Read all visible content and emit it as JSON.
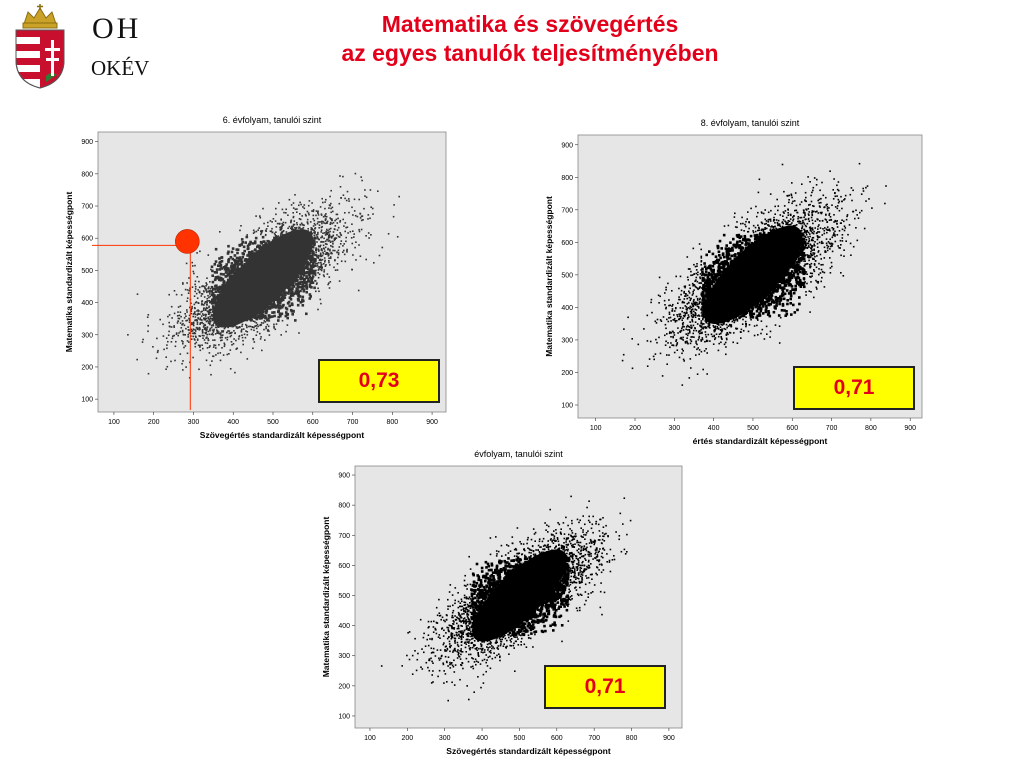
{
  "header": {
    "org": "OH",
    "org_sub": "OKÉV",
    "title_line1": "Matematika és szövegértés",
    "title_line2": "az egyes tanulók teljesítményében"
  },
  "colors": {
    "title": "#e3001b",
    "plot_background": "#e6e6e6",
    "points_6": "#333333",
    "points_8": "#000000",
    "points_10": "#000000",
    "marker": "#ff3300",
    "marker_line": "#ff3300",
    "badge_background": "#ffff00",
    "badge_text": "#e3001b"
  },
  "chart_data": [
    {
      "type": "scatter",
      "title": "6. évfolyam, tanulói szint",
      "xlabel": "Szövegértés standardizált képességpont",
      "ylabel": "Matematika standardizált képességpont",
      "xlim": [
        60,
        935
      ],
      "ylim": [
        60,
        930
      ],
      "xticks": [
        "100",
        "200",
        "300",
        "400",
        "500",
        "600",
        "700",
        "800",
        "900"
      ],
      "yticks": [
        "100",
        "200",
        "300",
        "400",
        "500",
        "600",
        "700",
        "800",
        "900"
      ],
      "correlation": "0,73",
      "cloud": {
        "mean_x": 475,
        "mean_y": 475,
        "sd_x": 100,
        "sd_y": 100,
        "r": 0.73,
        "x_range": [
          130,
          830
        ],
        "y_range": [
          150,
          840
        ]
      },
      "highlight": {
        "x": 277,
        "y": 590
      }
    },
    {
      "type": "scatter",
      "title": "8. évfolyam, tanulói szint",
      "xlabel": "értés standardizált képességpont",
      "ylabel": "Matematika standardizált képességpont",
      "xlim": [
        55,
        930
      ],
      "ylim": [
        60,
        930
      ],
      "xticks": [
        "100",
        "200",
        "300",
        "400",
        "500",
        "600",
        "700",
        "800",
        "900"
      ],
      "yticks": [
        "100",
        "200",
        "300",
        "400",
        "500",
        "600",
        "700",
        "800",
        "900"
      ],
      "correlation": "0,71",
      "cloud": {
        "mean_x": 500,
        "mean_y": 500,
        "sd_x": 100,
        "sd_y": 100,
        "r": 0.71,
        "x_range": [
          110,
          850
        ],
        "y_range": [
          120,
          850
        ]
      }
    },
    {
      "type": "scatter",
      "title": "évfolyam, tanulói szint",
      "xlabel": "Szövegértés standardizált képességpont",
      "ylabel": "Matematika standardizált képességpont",
      "xlim": [
        60,
        935
      ],
      "ylim": [
        60,
        930
      ],
      "xticks": [
        "100",
        "200",
        "300",
        "400",
        "500",
        "600",
        "700",
        "800",
        "900"
      ],
      "yticks": [
        "100",
        "200",
        "300",
        "400",
        "500",
        "600",
        "700",
        "800",
        "900"
      ],
      "correlation": "0,71",
      "cloud": {
        "mean_x": 500,
        "mean_y": 500,
        "sd_x": 100,
        "sd_y": 100,
        "r": 0.71,
        "x_range": [
          130,
          850
        ],
        "y_range": [
          140,
          860
        ]
      }
    }
  ]
}
